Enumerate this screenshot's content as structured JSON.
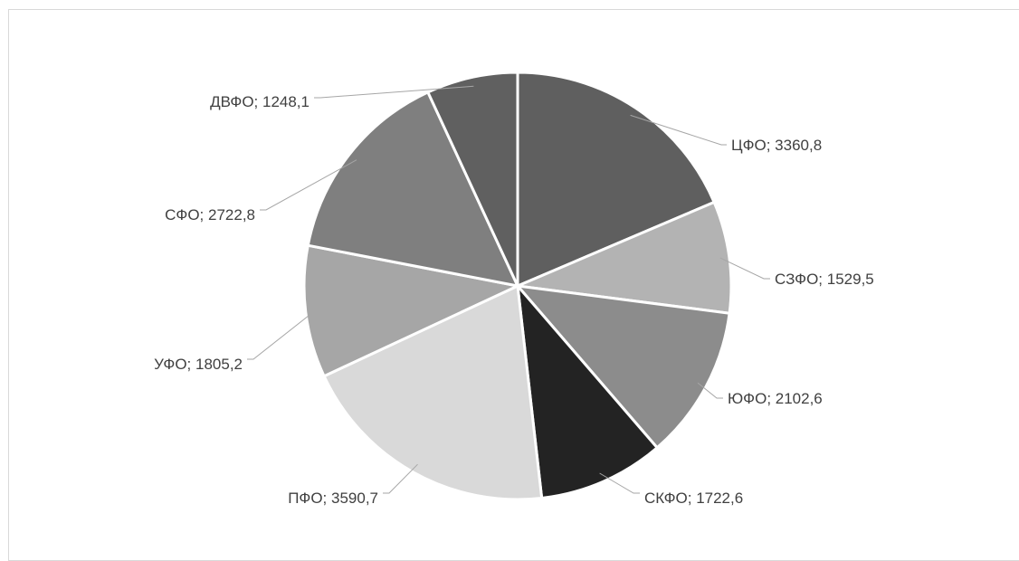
{
  "chart_data": {
    "type": "pie",
    "title": "",
    "start_angle_deg": 0,
    "direction": "clockwise",
    "legend": "none",
    "slices": [
      {
        "label": "ЦФО",
        "value": 3360.8,
        "display": "ЦФО; 3360,8",
        "color": "#5f5f5f"
      },
      {
        "label": "СЗФО",
        "value": 1529.5,
        "display": "СЗФО; 1529,5",
        "color": "#b3b3b3"
      },
      {
        "label": "ЮФО",
        "value": 2102.6,
        "display": "ЮФО; 2102,6",
        "color": "#8c8c8c"
      },
      {
        "label": "СКФО",
        "value": 1722.6,
        "display": "СКФО; 1722,6",
        "color": "#232323"
      },
      {
        "label": "ПФО",
        "value": 3590.7,
        "display": "ПФО; 3590,7",
        "color": "#d9d9d9"
      },
      {
        "label": "УФО",
        "value": 1805.2,
        "display": "УФО; 1805,2",
        "color": "#a6a6a6"
      },
      {
        "label": "СФО",
        "value": 2722.8,
        "display": "СФО; 2722,8",
        "color": "#7f7f7f"
      },
      {
        "label": "ДВФО",
        "value": 1248.1,
        "display": "ДВФО; 1248,1",
        "color": "#606060"
      }
    ]
  }
}
